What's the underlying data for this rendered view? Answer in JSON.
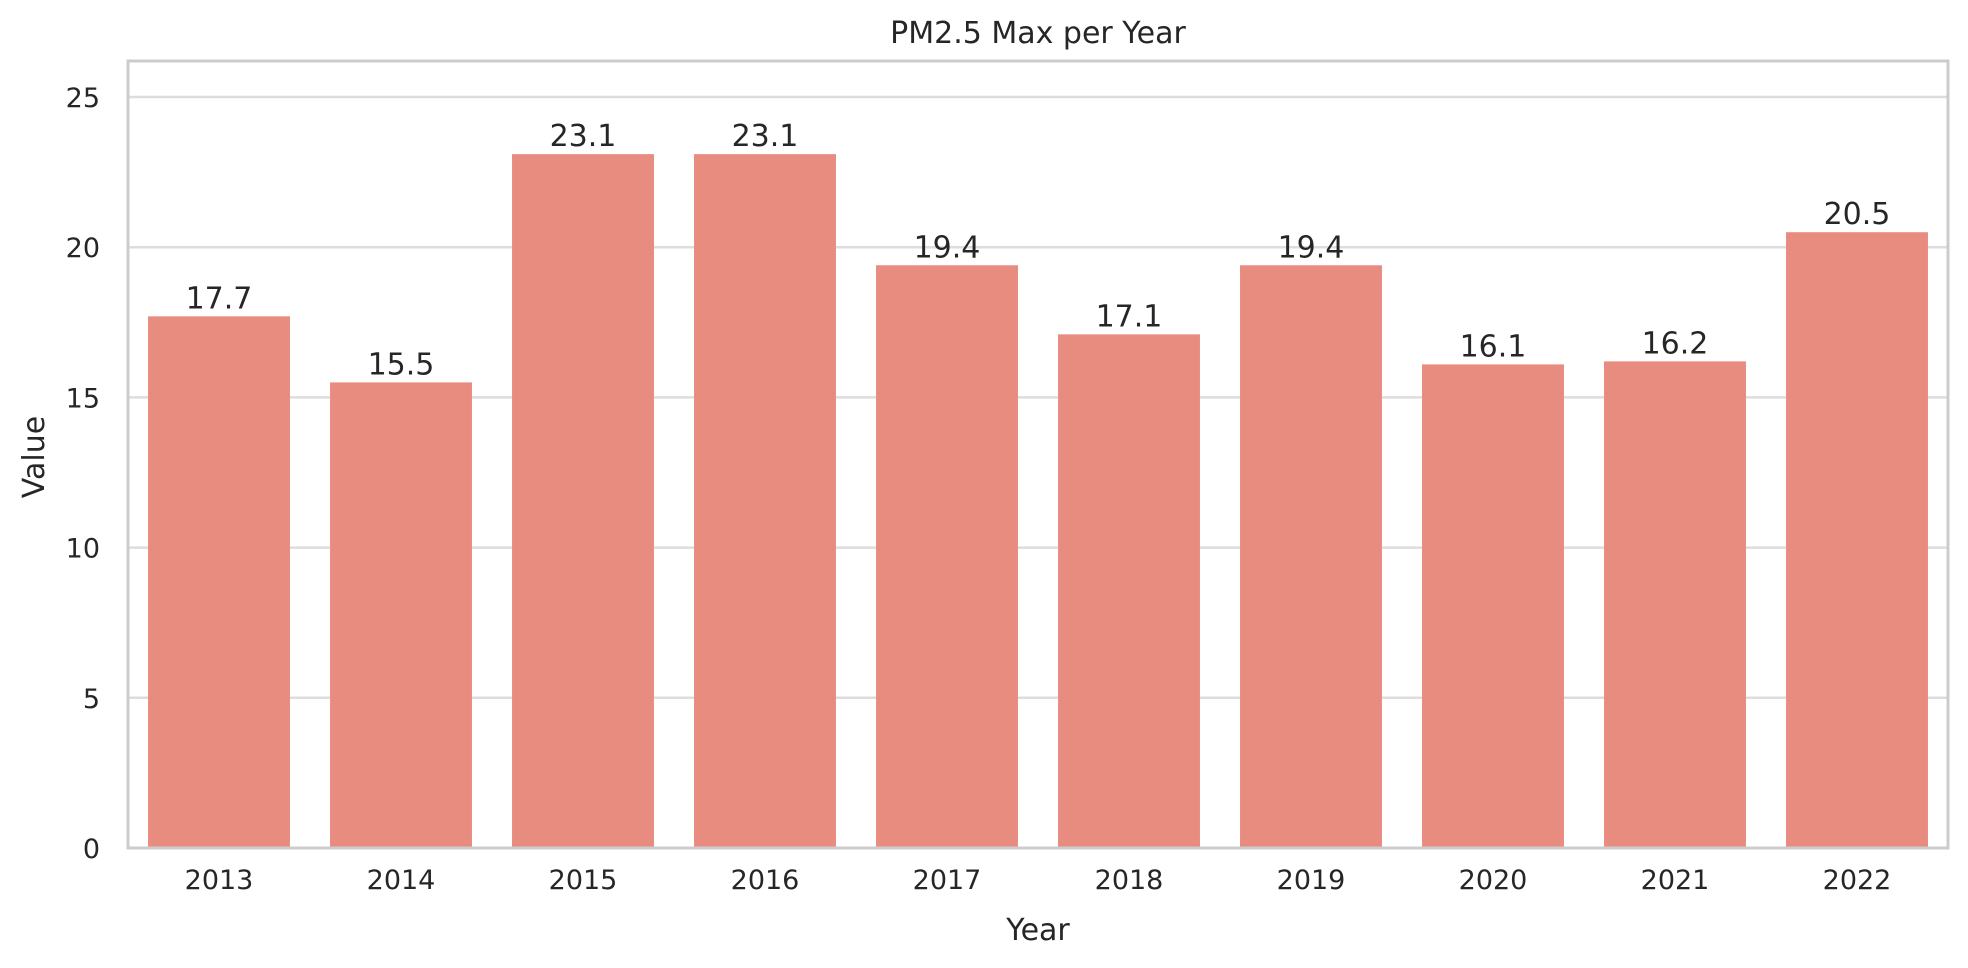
{
  "chart_data": {
    "type": "bar",
    "title": "PM2.5 Max per Year",
    "xlabel": "Year",
    "ylabel": "Value",
    "categories": [
      "2013",
      "2014",
      "2015",
      "2016",
      "2017",
      "2018",
      "2019",
      "2020",
      "2021",
      "2022"
    ],
    "values": [
      17.7,
      15.5,
      23.1,
      23.1,
      19.4,
      17.1,
      19.4,
      16.1,
      16.2,
      20.5
    ],
    "data_labels": [
      "17.7",
      "15.5",
      "23.1",
      "23.1",
      "19.4",
      "17.1",
      "19.4",
      "16.1",
      "16.2",
      "20.5"
    ],
    "yticks": [
      0,
      5,
      10,
      15,
      20,
      25
    ],
    "ylim": [
      0,
      26.2
    ],
    "grid": true,
    "legend": false,
    "bar_color": "#e98c80",
    "grid_color": "#dddddd",
    "frame_color": "#cccccc",
    "text_color": "#262626",
    "background": "#ffffff"
  }
}
